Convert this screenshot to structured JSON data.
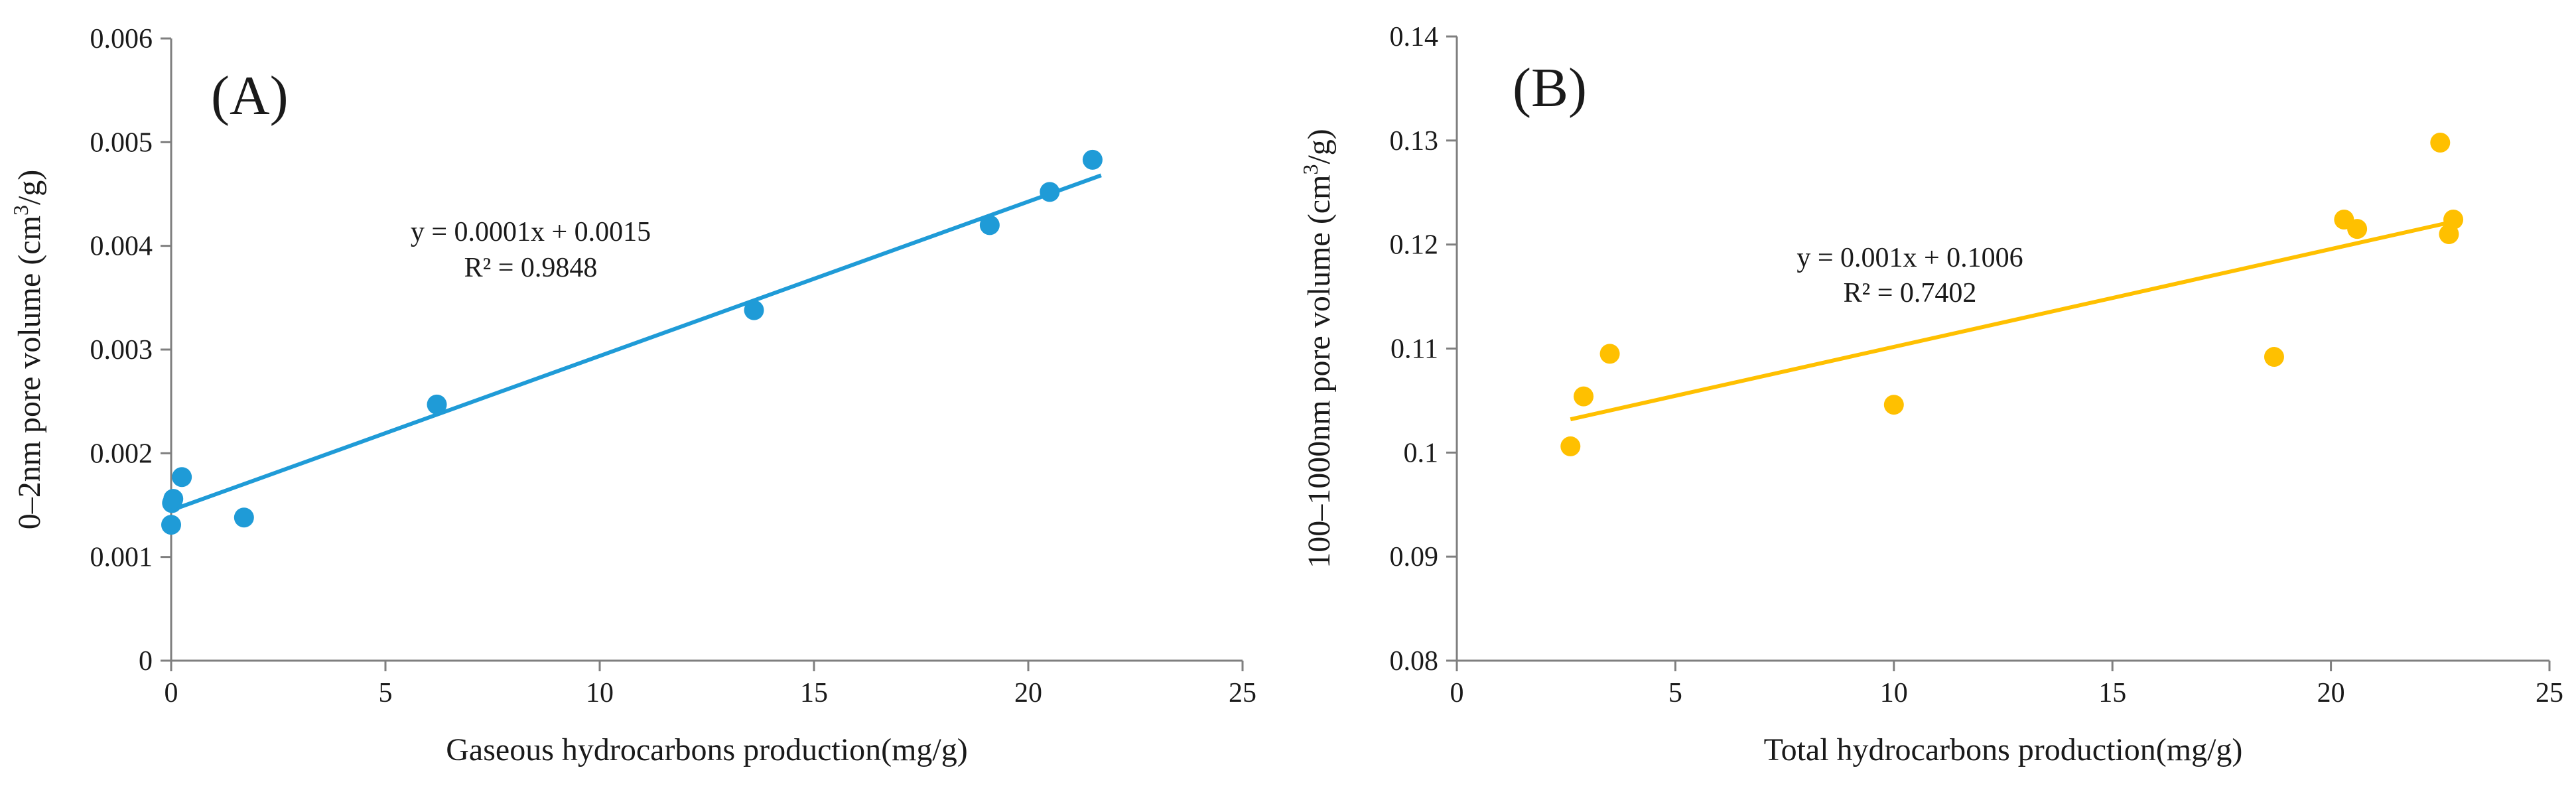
{
  "chart_data": [
    {
      "type": "scatter",
      "panel_label": "(A)",
      "xlabel": "Gaseous hydrocarbons  production(mg/g)",
      "ylabel_main": "0–2nm pore volume (cm",
      "ylabel_sup": "3",
      "ylabel_end": "/g)",
      "xlim": [
        0,
        25
      ],
      "ylim": [
        0,
        0.006
      ],
      "xticks": [
        "0",
        "5",
        "10",
        "15",
        "20",
        "25"
      ],
      "xtick_values": [
        0,
        5,
        10,
        15,
        20,
        25
      ],
      "yticks": [
        "0",
        "0.001",
        "0.002",
        "0.003",
        "0.004",
        "0.005",
        "0.006"
      ],
      "ytick_values": [
        0,
        0.001,
        0.002,
        0.003,
        0.004,
        0.005,
        0.006
      ],
      "series": [
        {
          "name": "data",
          "color": "#1f9bd7",
          "x": [
            0,
            0.02,
            0.05,
            0.25,
            1.7,
            6.2,
            13.6,
            19.1,
            20.5,
            21.5
          ],
          "y": [
            0.00131,
            0.00152,
            0.00156,
            0.00177,
            0.00138,
            0.00247,
            0.00338,
            0.0042,
            0.00452,
            0.00483
          ]
        }
      ],
      "trendline": {
        "color": "#1f9bd7",
        "slope": 0.0001,
        "intercept": 0.0015,
        "x_start": 0,
        "x_end": 21.7,
        "y_start": 0.00145,
        "y_end": 0.00468,
        "equation": "y = 0.0001x + 0.0015",
        "r2_label": "R² = 0.9848"
      }
    },
    {
      "type": "scatter",
      "panel_label": "(B)",
      "xlabel": "Total hydrocarbons  production(mg/g)",
      "ylabel_main": "100–1000nm pore volume (cm",
      "ylabel_sup": "3",
      "ylabel_end": "/g)",
      "xlim": [
        0,
        25
      ],
      "ylim": [
        0.08,
        0.14
      ],
      "xticks": [
        "0",
        "5",
        "10",
        "15",
        "20",
        "25"
      ],
      "xtick_values": [
        0,
        5,
        10,
        15,
        20,
        25
      ],
      "yticks": [
        "0.08",
        "0.09",
        "0.1",
        "0.11",
        "0.12",
        "0.13",
        "0.14"
      ],
      "ytick_values": [
        0.08,
        0.09,
        0.1,
        0.11,
        0.12,
        0.13,
        0.14
      ],
      "series": [
        {
          "name": "data",
          "color": "#ffc000",
          "x": [
            2.6,
            2.9,
            3.5,
            10.0,
            18.7,
            20.3,
            20.6,
            22.5,
            22.7,
            22.8
          ],
          "y": [
            0.1006,
            0.1054,
            0.1095,
            0.1046,
            0.1092,
            0.1224,
            0.1215,
            0.1298,
            0.121,
            0.1224
          ]
        }
      ],
      "trendline": {
        "color": "#ffc000",
        "slope": 0.001,
        "intercept": 0.1006,
        "x_start": 2.6,
        "x_end": 22.8,
        "y_start": 0.1032,
        "y_end": 0.1222,
        "equation": "y = 0.001x + 0.1006",
        "r2_label": "R² = 0.7402"
      }
    }
  ]
}
